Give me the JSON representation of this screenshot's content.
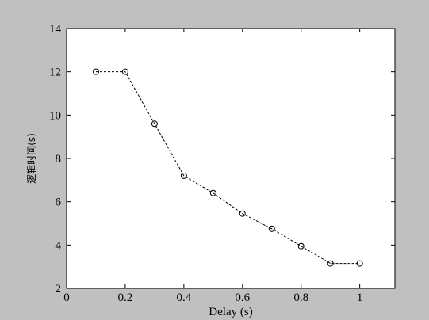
{
  "chart_data": {
    "type": "line",
    "title": "",
    "xlabel": "Delay (s)",
    "ylabel": "逻辑时间(s)",
    "xlim": [
      0,
      1.12
    ],
    "ylim": [
      2,
      14
    ],
    "xticks": [
      0,
      0.2,
      0.4,
      0.6,
      0.8,
      1
    ],
    "xtick_labels": [
      "0",
      "0.2",
      "0.4",
      "0.6",
      "0.8",
      "1"
    ],
    "yticks": [
      2,
      4,
      6,
      8,
      10,
      12,
      14
    ],
    "ytick_labels": [
      "2",
      "4",
      "6",
      "8",
      "10",
      "12",
      "14"
    ],
    "grid": false,
    "legend": "none",
    "series": [
      {
        "x": [
          0.1,
          0.2,
          0.3,
          0.4,
          0.5,
          0.6,
          0.7,
          0.8,
          0.9,
          1.0
        ],
        "values": [
          12.0,
          12.0,
          9.6,
          7.2,
          6.4,
          5.45,
          4.75,
          3.95,
          3.15,
          3.15
        ],
        "line_style": "dashed",
        "marker": "circle-open",
        "color": "#000000"
      }
    ],
    "colors": {
      "figure_background": "#c0c0c0",
      "plot_background": "#ffffff",
      "axis": "#000000"
    }
  }
}
